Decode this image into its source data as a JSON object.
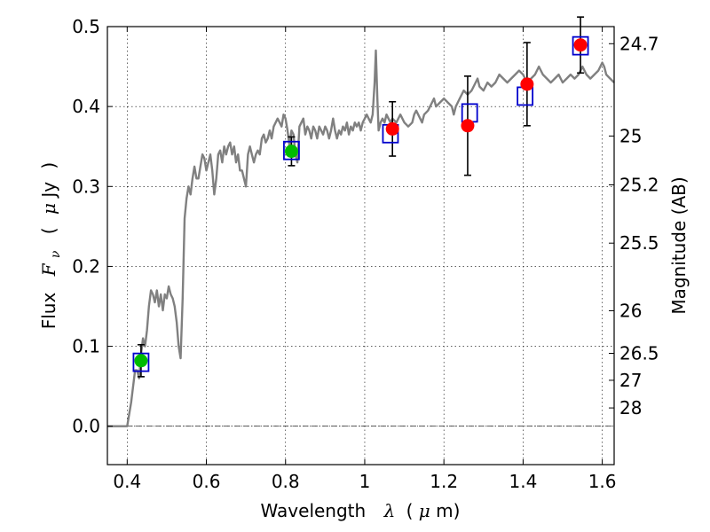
{
  "chart_data": {
    "type": "scatter",
    "xlabel_parts": [
      "Wavelength",
      "λ",
      "(",
      "μ",
      "m)"
    ],
    "ylabel_parts": [
      "Flux",
      "F",
      "ν",
      "(",
      "μ",
      "Jy",
      ")"
    ],
    "y2label": "Magnitude (AB)",
    "xlim": [
      0.35,
      1.63
    ],
    "ylim": [
      -0.048,
      0.5
    ],
    "x_ticks": [
      0.4,
      0.6,
      0.8,
      1.0,
      1.2,
      1.4,
      1.6
    ],
    "x_tick_labels": [
      "0.4",
      "0.6",
      "0.8",
      "1",
      "1.2",
      "1.4",
      "1.6"
    ],
    "y_ticks": [
      0.0,
      0.1,
      0.2,
      0.3,
      0.4,
      0.5
    ],
    "y_tick_labels": [
      "0.0",
      "0.1",
      "0.2",
      "0.3",
      "0.4",
      "0.5"
    ],
    "mag_ticks": [
      {
        "label": "24.7",
        "flux": 0.4786
      },
      {
        "label": "25",
        "flux": 0.3631
      },
      {
        "label": "25.2",
        "flux": 0.302
      },
      {
        "label": "25.5",
        "flux": 0.2291
      },
      {
        "label": "26",
        "flux": 0.1445
      },
      {
        "label": "26.5",
        "flux": 0.0912
      },
      {
        "label": "27",
        "flux": 0.0575
      },
      {
        "label": "28",
        "flux": 0.0229
      }
    ],
    "grid": true,
    "zero_line": true,
    "template_spectrum": [
      [
        0.35,
        0.0
      ],
      [
        0.39,
        0.0
      ],
      [
        0.4,
        0.0
      ],
      [
        0.41,
        0.03
      ],
      [
        0.42,
        0.07
      ],
      [
        0.425,
        0.07
      ],
      [
        0.43,
        0.06
      ],
      [
        0.435,
        0.09
      ],
      [
        0.44,
        0.11
      ],
      [
        0.445,
        0.1
      ],
      [
        0.45,
        0.12
      ],
      [
        0.455,
        0.15
      ],
      [
        0.46,
        0.17
      ],
      [
        0.465,
        0.165
      ],
      [
        0.47,
        0.155
      ],
      [
        0.475,
        0.17
      ],
      [
        0.48,
        0.15
      ],
      [
        0.485,
        0.165
      ],
      [
        0.49,
        0.145
      ],
      [
        0.495,
        0.165
      ],
      [
        0.5,
        0.16
      ],
      [
        0.505,
        0.175
      ],
      [
        0.51,
        0.165
      ],
      [
        0.515,
        0.16
      ],
      [
        0.52,
        0.15
      ],
      [
        0.525,
        0.13
      ],
      [
        0.53,
        0.1
      ],
      [
        0.535,
        0.085
      ],
      [
        0.54,
        0.16
      ],
      [
        0.545,
        0.26
      ],
      [
        0.55,
        0.285
      ],
      [
        0.555,
        0.3
      ],
      [
        0.56,
        0.29
      ],
      [
        0.565,
        0.31
      ],
      [
        0.57,
        0.325
      ],
      [
        0.575,
        0.31
      ],
      [
        0.58,
        0.31
      ],
      [
        0.585,
        0.325
      ],
      [
        0.59,
        0.34
      ],
      [
        0.595,
        0.335
      ],
      [
        0.6,
        0.32
      ],
      [
        0.605,
        0.33
      ],
      [
        0.61,
        0.34
      ],
      [
        0.615,
        0.32
      ],
      [
        0.62,
        0.29
      ],
      [
        0.625,
        0.31
      ],
      [
        0.63,
        0.34
      ],
      [
        0.635,
        0.345
      ],
      [
        0.64,
        0.33
      ],
      [
        0.645,
        0.35
      ],
      [
        0.65,
        0.34
      ],
      [
        0.655,
        0.35
      ],
      [
        0.66,
        0.355
      ],
      [
        0.665,
        0.34
      ],
      [
        0.67,
        0.35
      ],
      [
        0.675,
        0.33
      ],
      [
        0.68,
        0.34
      ],
      [
        0.685,
        0.32
      ],
      [
        0.69,
        0.32
      ],
      [
        0.7,
        0.3
      ],
      [
        0.705,
        0.34
      ],
      [
        0.71,
        0.35
      ],
      [
        0.715,
        0.34
      ],
      [
        0.72,
        0.33
      ],
      [
        0.725,
        0.34
      ],
      [
        0.73,
        0.345
      ],
      [
        0.735,
        0.34
      ],
      [
        0.74,
        0.36
      ],
      [
        0.745,
        0.365
      ],
      [
        0.75,
        0.355
      ],
      [
        0.755,
        0.36
      ],
      [
        0.76,
        0.37
      ],
      [
        0.765,
        0.36
      ],
      [
        0.77,
        0.375
      ],
      [
        0.78,
        0.385
      ],
      [
        0.785,
        0.38
      ],
      [
        0.79,
        0.375
      ],
      [
        0.795,
        0.39
      ],
      [
        0.8,
        0.385
      ],
      [
        0.805,
        0.37
      ],
      [
        0.81,
        0.35
      ],
      [
        0.815,
        0.37
      ],
      [
        0.82,
        0.365
      ],
      [
        0.825,
        0.34
      ],
      [
        0.83,
        0.33
      ],
      [
        0.835,
        0.375
      ],
      [
        0.84,
        0.38
      ],
      [
        0.845,
        0.385
      ],
      [
        0.85,
        0.365
      ],
      [
        0.855,
        0.375
      ],
      [
        0.86,
        0.37
      ],
      [
        0.865,
        0.36
      ],
      [
        0.87,
        0.375
      ],
      [
        0.875,
        0.37
      ],
      [
        0.88,
        0.36
      ],
      [
        0.885,
        0.375
      ],
      [
        0.89,
        0.37
      ],
      [
        0.895,
        0.365
      ],
      [
        0.9,
        0.375
      ],
      [
        0.905,
        0.37
      ],
      [
        0.91,
        0.36
      ],
      [
        0.915,
        0.37
      ],
      [
        0.92,
        0.385
      ],
      [
        0.925,
        0.37
      ],
      [
        0.93,
        0.36
      ],
      [
        0.935,
        0.37
      ],
      [
        0.94,
        0.365
      ],
      [
        0.945,
        0.375
      ],
      [
        0.95,
        0.37
      ],
      [
        0.955,
        0.38
      ],
      [
        0.96,
        0.365
      ],
      [
        0.965,
        0.375
      ],
      [
        0.97,
        0.37
      ],
      [
        0.975,
        0.38
      ],
      [
        0.98,
        0.375
      ],
      [
        0.985,
        0.38
      ],
      [
        0.99,
        0.37
      ],
      [
        0.995,
        0.38
      ],
      [
        1.0,
        0.385
      ],
      [
        1.005,
        0.39
      ],
      [
        1.01,
        0.385
      ],
      [
        1.015,
        0.38
      ],
      [
        1.02,
        0.39
      ],
      [
        1.025,
        0.43
      ],
      [
        1.028,
        0.47
      ],
      [
        1.032,
        0.41
      ],
      [
        1.035,
        0.37
      ],
      [
        1.04,
        0.38
      ],
      [
        1.045,
        0.385
      ],
      [
        1.05,
        0.38
      ],
      [
        1.055,
        0.39
      ],
      [
        1.06,
        0.385
      ],
      [
        1.065,
        0.38
      ],
      [
        1.07,
        0.385
      ],
      [
        1.08,
        0.38
      ],
      [
        1.09,
        0.39
      ],
      [
        1.1,
        0.38
      ],
      [
        1.11,
        0.375
      ],
      [
        1.12,
        0.38
      ],
      [
        1.125,
        0.39
      ],
      [
        1.13,
        0.395
      ],
      [
        1.14,
        0.385
      ],
      [
        1.145,
        0.38
      ],
      [
        1.15,
        0.39
      ],
      [
        1.16,
        0.395
      ],
      [
        1.17,
        0.405
      ],
      [
        1.175,
        0.41
      ],
      [
        1.18,
        0.4
      ],
      [
        1.19,
        0.405
      ],
      [
        1.2,
        0.41
      ],
      [
        1.21,
        0.405
      ],
      [
        1.22,
        0.4
      ],
      [
        1.225,
        0.39
      ],
      [
        1.23,
        0.4
      ],
      [
        1.24,
        0.41
      ],
      [
        1.25,
        0.42
      ],
      [
        1.26,
        0.415
      ],
      [
        1.27,
        0.42
      ],
      [
        1.28,
        0.43
      ],
      [
        1.285,
        0.435
      ],
      [
        1.29,
        0.425
      ],
      [
        1.3,
        0.42
      ],
      [
        1.31,
        0.43
      ],
      [
        1.32,
        0.425
      ],
      [
        1.33,
        0.43
      ],
      [
        1.34,
        0.44
      ],
      [
        1.35,
        0.435
      ],
      [
        1.36,
        0.43
      ],
      [
        1.37,
        0.435
      ],
      [
        1.38,
        0.44
      ],
      [
        1.39,
        0.445
      ],
      [
        1.4,
        0.44
      ],
      [
        1.41,
        0.43
      ],
      [
        1.42,
        0.435
      ],
      [
        1.43,
        0.44
      ],
      [
        1.44,
        0.45
      ],
      [
        1.45,
        0.44
      ],
      [
        1.46,
        0.435
      ],
      [
        1.47,
        0.43
      ],
      [
        1.48,
        0.435
      ],
      [
        1.49,
        0.44
      ],
      [
        1.5,
        0.43
      ],
      [
        1.51,
        0.435
      ],
      [
        1.52,
        0.44
      ],
      [
        1.53,
        0.435
      ],
      [
        1.54,
        0.44
      ],
      [
        1.55,
        0.45
      ],
      [
        1.56,
        0.44
      ],
      [
        1.57,
        0.435
      ],
      [
        1.58,
        0.44
      ],
      [
        1.59,
        0.445
      ],
      [
        1.6,
        0.455
      ],
      [
        1.605,
        0.45
      ],
      [
        1.61,
        0.44
      ],
      [
        1.62,
        0.435
      ],
      [
        1.63,
        0.43
      ]
    ],
    "template_color": "#808080",
    "observed_green": {
      "color": "#00bb00",
      "x": [
        0.435,
        0.815
      ],
      "y": [
        0.082,
        0.344
      ],
      "yerr": [
        0.02,
        0.018
      ]
    },
    "observed_red": {
      "color": "#ff0000",
      "x": [
        1.07,
        1.26,
        1.41,
        1.545
      ],
      "y": [
        0.372,
        0.376,
        0.428,
        0.477
      ],
      "yerr": [
        0.034,
        0.062,
        0.052,
        0.035
      ]
    },
    "model_boxes": {
      "color": "#0000cc",
      "x": [
        0.435,
        0.815,
        1.065,
        1.265,
        1.405,
        1.545
      ],
      "y": [
        0.08,
        0.345,
        0.366,
        0.392,
        0.413,
        0.476
      ]
    }
  }
}
